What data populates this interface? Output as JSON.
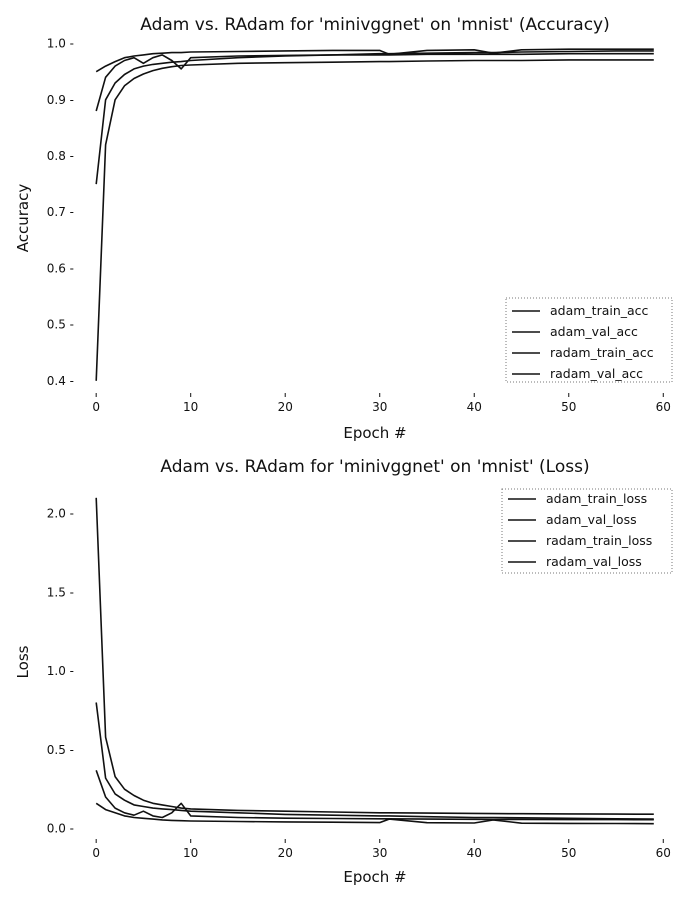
{
  "chart_data": [
    {
      "type": "line",
      "title": "Adam vs. RAdam for 'minivggnet' on 'mnist' (Accuracy)",
      "xlabel": "Epoch #",
      "ylabel": "Accuracy",
      "xlim": [
        -1.5,
        60.5
      ],
      "ylim": [
        0.38,
        1.01
      ],
      "xticks": [
        0,
        10,
        20,
        30,
        40,
        50,
        60
      ],
      "yticks": [
        0.4,
        0.5,
        0.6,
        0.7,
        0.8,
        0.9,
        1.0
      ],
      "xtick_labels": [
        "0",
        "10",
        "20",
        "30",
        "40",
        "50",
        "60"
      ],
      "ytick_labels": [
        "0.4 -",
        "0.5 -",
        "0.6 -",
        "0.7 -",
        "0.8 -",
        "0.9 -",
        "1.0 -"
      ],
      "grid": false,
      "legend_position": "bottom-right",
      "x": [
        0,
        1,
        2,
        3,
        4,
        5,
        6,
        7,
        8,
        9,
        10,
        15,
        20,
        25,
        30,
        31,
        35,
        40,
        42,
        45,
        50,
        55,
        59
      ],
      "series": [
        {
          "name": "adam_train_acc",
          "values": [
            0.75,
            0.9,
            0.93,
            0.945,
            0.955,
            0.96,
            0.963,
            0.965,
            0.967,
            0.968,
            0.97,
            0.975,
            0.978,
            0.98,
            0.982,
            0.982,
            0.983,
            0.984,
            0.984,
            0.985,
            0.986,
            0.987,
            0.987
          ]
        },
        {
          "name": "adam_val_acc",
          "values": [
            0.95,
            0.96,
            0.968,
            0.975,
            0.978,
            0.98,
            0.982,
            0.983,
            0.984,
            0.984,
            0.985,
            0.986,
            0.987,
            0.988,
            0.988,
            0.981,
            0.988,
            0.989,
            0.983,
            0.989,
            0.99,
            0.99,
            0.99
          ]
        },
        {
          "name": "radam_train_acc",
          "values": [
            0.4,
            0.82,
            0.9,
            0.925,
            0.938,
            0.946,
            0.952,
            0.956,
            0.959,
            0.961,
            0.962,
            0.965,
            0.966,
            0.967,
            0.968,
            0.968,
            0.969,
            0.97,
            0.97,
            0.97,
            0.971,
            0.971,
            0.971
          ]
        },
        {
          "name": "radam_val_acc",
          "values": [
            0.88,
            0.94,
            0.96,
            0.97,
            0.975,
            0.965,
            0.975,
            0.98,
            0.97,
            0.955,
            0.975,
            0.978,
            0.979,
            0.98,
            0.98,
            0.98,
            0.981,
            0.981,
            0.981,
            0.981,
            0.982,
            0.982,
            0.982
          ]
        }
      ]
    },
    {
      "type": "line",
      "title": "Adam vs. RAdam for 'minivggnet' on 'mnist' (Loss)",
      "xlabel": "Epoch #",
      "ylabel": "Loss",
      "xlim": [
        -1.5,
        60.5
      ],
      "ylim": [
        -0.06,
        2.2
      ],
      "xticks": [
        0,
        10,
        20,
        30,
        40,
        50,
        60
      ],
      "yticks": [
        0.0,
        0.5,
        1.0,
        1.5,
        2.0
      ],
      "xtick_labels": [
        "0",
        "10",
        "20",
        "30",
        "40",
        "50",
        "60"
      ],
      "ytick_labels": [
        "0.0 -",
        "0.5 -",
        "1.0 -",
        "1.5 -",
        "2.0 -"
      ],
      "grid": false,
      "legend_position": "top-right",
      "x": [
        0,
        1,
        2,
        3,
        4,
        5,
        6,
        7,
        8,
        9,
        10,
        15,
        20,
        25,
        30,
        31,
        35,
        40,
        42,
        45,
        50,
        55,
        59
      ],
      "series": [
        {
          "name": "adam_train_loss",
          "values": [
            0.8,
            0.32,
            0.22,
            0.18,
            0.15,
            0.14,
            0.13,
            0.125,
            0.12,
            0.115,
            0.11,
            0.1,
            0.09,
            0.085,
            0.08,
            0.08,
            0.075,
            0.07,
            0.07,
            0.068,
            0.065,
            0.062,
            0.06
          ]
        },
        {
          "name": "adam_val_loss",
          "values": [
            0.16,
            0.12,
            0.1,
            0.08,
            0.07,
            0.065,
            0.06,
            0.055,
            0.052,
            0.05,
            0.048,
            0.045,
            0.042,
            0.04,
            0.038,
            0.06,
            0.037,
            0.035,
            0.055,
            0.034,
            0.033,
            0.032,
            0.031
          ]
        },
        {
          "name": "radam_train_loss",
          "values": [
            2.1,
            0.58,
            0.33,
            0.25,
            0.21,
            0.18,
            0.16,
            0.15,
            0.14,
            0.13,
            0.125,
            0.115,
            0.11,
            0.105,
            0.1,
            0.1,
            0.098,
            0.096,
            0.095,
            0.094,
            0.093,
            0.092,
            0.091
          ]
        },
        {
          "name": "radam_val_loss",
          "values": [
            0.37,
            0.2,
            0.13,
            0.1,
            0.085,
            0.11,
            0.08,
            0.07,
            0.1,
            0.16,
            0.08,
            0.07,
            0.066,
            0.064,
            0.062,
            0.062,
            0.06,
            0.059,
            0.058,
            0.058,
            0.057,
            0.057,
            0.056
          ]
        }
      ]
    }
  ]
}
